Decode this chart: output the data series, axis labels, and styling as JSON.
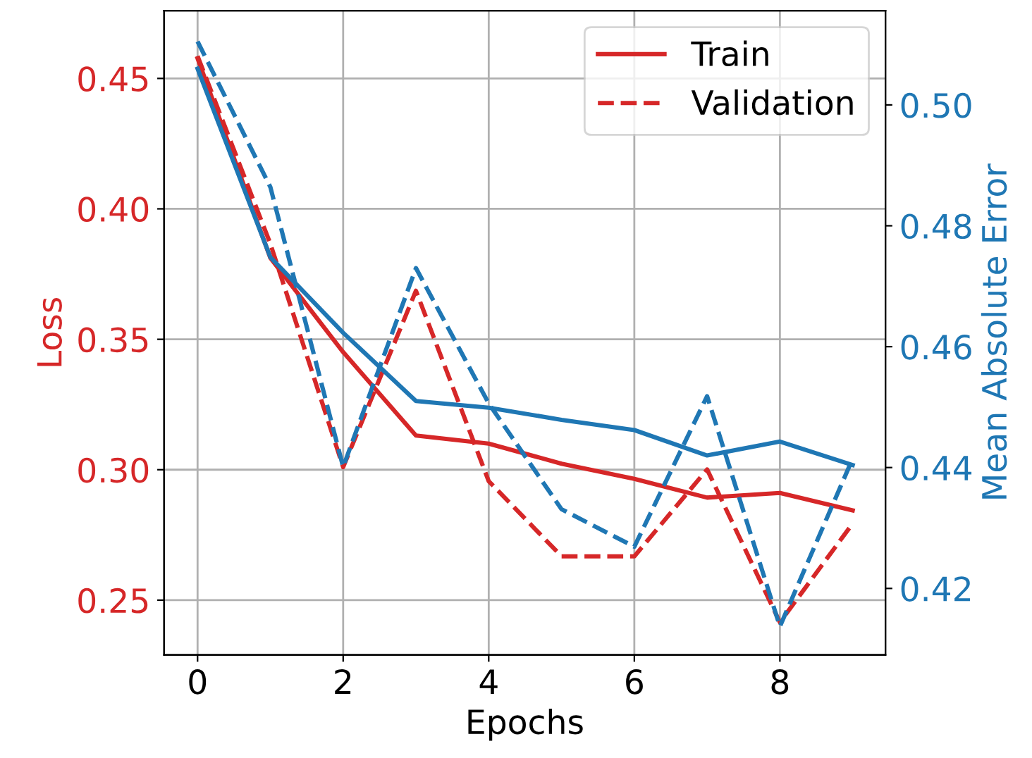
{
  "chart_data": {
    "type": "line",
    "xlabel": "Epochs",
    "ylabel": "Loss",
    "y2label": "Mean Absolute Error",
    "x": [
      0,
      1,
      2,
      3,
      4,
      5,
      6,
      7,
      8,
      9
    ],
    "series": [
      {
        "name": "Train",
        "color": "#d62728",
        "line_style": "solid",
        "values": [
          0.4577,
          0.3812,
          0.3451,
          0.3131,
          0.31,
          0.3023,
          0.2965,
          0.2893,
          0.2911,
          0.2844
        ]
      },
      {
        "name": "Validation",
        "color": "#d62728",
        "line_style": "dashed",
        "values": [
          0.4586,
          0.3866,
          0.301,
          0.3686,
          0.2956,
          0.2668,
          0.2668,
          0.3001,
          0.2415,
          0.2794
        ]
      },
      {
        "color": "#1f77b4",
        "line_style": "solid",
        "axis": "y2",
        "values": [
          0.506,
          0.4748,
          0.4623,
          0.451,
          0.4499,
          0.4479,
          0.4462,
          0.442,
          0.4443,
          0.4404
        ]
      },
      {
        "color": "#1f77b4",
        "line_style": "dashed",
        "axis": "y2",
        "values": [
          0.5105,
          0.4864,
          0.4401,
          0.473,
          0.4506,
          0.4331,
          0.4269,
          0.4518,
          0.4137,
          0.4415
        ]
      }
    ],
    "xlim": [
      -0.46,
      9.45
    ],
    "xticks": [
      0,
      2,
      4,
      6,
      8
    ],
    "ylim": [
      0.229,
      0.476
    ],
    "yticks": [
      {
        "value": 0.25,
        "label": "0.25"
      },
      {
        "value": 0.3,
        "label": "0.30"
      },
      {
        "value": 0.35,
        "label": "0.35"
      },
      {
        "value": 0.4,
        "label": "0.40"
      },
      {
        "value": 0.45,
        "label": "0.45"
      }
    ],
    "y2lim": [
      0.409,
      0.5156
    ],
    "y2ticks": [
      0.42,
      0.44,
      0.46,
      0.48,
      {
        "value": 0.5,
        "label": "0.50"
      }
    ],
    "grid": true,
    "legend": "top right",
    "marker": "none"
  }
}
